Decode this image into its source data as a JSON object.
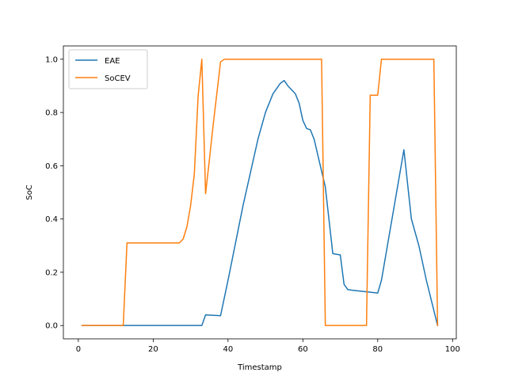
{
  "chart_data": {
    "type": "line",
    "xlabel": "Timestamp",
    "ylabel": "SoC",
    "xlim": [
      -4,
      101
    ],
    "ylim": [
      -0.05,
      1.05
    ],
    "xticks": [
      0,
      20,
      40,
      60,
      80,
      100
    ],
    "yticks": [
      0.0,
      0.2,
      0.4,
      0.6,
      0.8,
      1.0
    ],
    "xtick_labels": [
      "0",
      "20",
      "40",
      "60",
      "80",
      "100"
    ],
    "ytick_labels": [
      "0.0",
      "0.2",
      "0.4",
      "0.6",
      "0.8",
      "1.0"
    ],
    "grid": false,
    "legend": "upper left",
    "series": [
      {
        "name": "EAE",
        "color": "#1f77b4",
        "x": [
          1,
          33,
          34,
          38,
          40,
          44,
          48,
          50,
          52,
          54,
          55,
          56,
          58,
          59,
          60,
          61,
          62,
          63,
          64,
          66,
          68,
          70,
          71,
          72,
          73,
          80,
          81,
          87,
          89,
          91,
          93,
          96
        ],
        "y": [
          0.0,
          0.0,
          0.04,
          0.037,
          0.17,
          0.45,
          0.7,
          0.8,
          0.87,
          0.91,
          0.92,
          0.9,
          0.87,
          0.835,
          0.77,
          0.74,
          0.735,
          0.7,
          0.64,
          0.52,
          0.27,
          0.265,
          0.155,
          0.135,
          0.133,
          0.122,
          0.17,
          0.66,
          0.4,
          0.3,
          0.17,
          0.0
        ]
      },
      {
        "name": "SoCEV",
        "color": "#ff7f0e",
        "x": [
          1,
          12,
          13,
          27,
          28,
          29,
          30,
          31,
          32,
          33,
          34,
          35,
          36,
          38,
          39,
          40,
          65,
          66,
          77,
          78,
          80,
          81,
          95,
          96
        ],
        "y": [
          0.0,
          0.0,
          0.31,
          0.31,
          0.325,
          0.37,
          0.45,
          0.57,
          0.86,
          1.0,
          0.495,
          0.62,
          0.75,
          0.99,
          1.0,
          1.0,
          1.0,
          0.0,
          0.0,
          0.865,
          0.865,
          1.0,
          1.0,
          0.0
        ]
      }
    ]
  }
}
